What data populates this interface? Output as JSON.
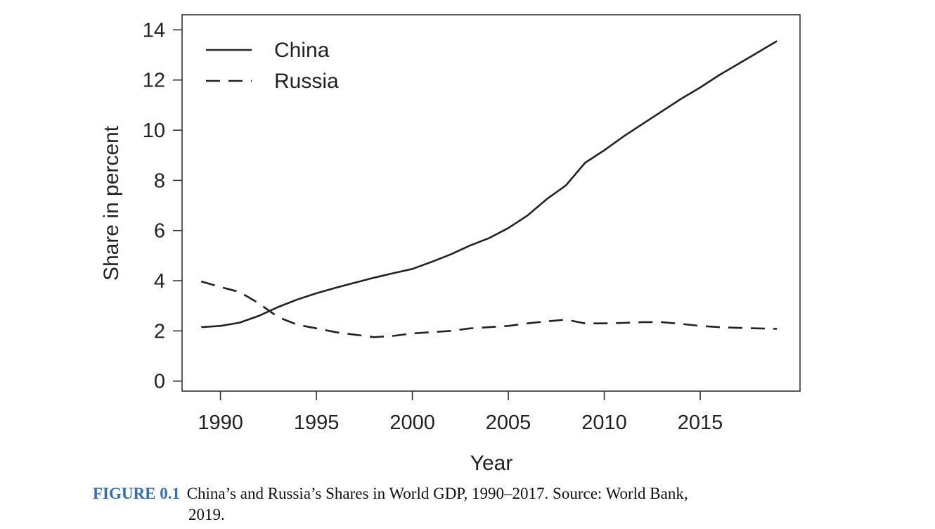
{
  "chart_data": {
    "type": "line",
    "xlabel": "Year",
    "ylabel": "Share in percent",
    "xlim": [
      1988,
      2020.2
    ],
    "ylim": [
      -0.4,
      14.6
    ],
    "xticks": [
      1990,
      1995,
      2000,
      2005,
      2010,
      2015
    ],
    "yticks": [
      0,
      2,
      4,
      6,
      8,
      10,
      12,
      14
    ],
    "legend_position": "top-left",
    "series": [
      {
        "name": "China",
        "style": "solid",
        "x": [
          1989,
          1990,
          1991,
          1992,
          1993,
          1994,
          1995,
          1996,
          1997,
          1998,
          1999,
          2000,
          2001,
          2002,
          2003,
          2004,
          2005,
          2006,
          2007,
          2008,
          2009,
          2010,
          2011,
          2012,
          2013,
          2014,
          2015,
          2016,
          2017,
          2018,
          2019
        ],
        "y": [
          2.15,
          2.2,
          2.33,
          2.6,
          2.95,
          3.25,
          3.5,
          3.72,
          3.92,
          4.12,
          4.3,
          4.47,
          4.75,
          5.05,
          5.4,
          5.7,
          6.1,
          6.6,
          7.25,
          7.8,
          8.7,
          9.2,
          9.75,
          10.25,
          10.75,
          11.25,
          11.7,
          12.2,
          12.65,
          13.1,
          13.55
        ]
      },
      {
        "name": "Russia",
        "style": "dashed",
        "x": [
          1989,
          1990,
          1991,
          1992,
          1993,
          1994,
          1995,
          1996,
          1997,
          1998,
          1999,
          2000,
          2001,
          2002,
          2003,
          2004,
          2005,
          2006,
          2007,
          2008,
          2009,
          2010,
          2011,
          2012,
          2013,
          2014,
          2015,
          2016,
          2017,
          2018,
          2019
        ],
        "y": [
          3.97,
          3.75,
          3.55,
          3.1,
          2.55,
          2.25,
          2.1,
          1.95,
          1.85,
          1.75,
          1.8,
          1.9,
          1.95,
          2.0,
          2.1,
          2.15,
          2.2,
          2.3,
          2.38,
          2.45,
          2.3,
          2.3,
          2.32,
          2.35,
          2.35,
          2.28,
          2.2,
          2.15,
          2.12,
          2.1,
          2.08
        ]
      }
    ]
  },
  "caption": {
    "label": "FIGURE 0.1",
    "text": "China’s and Russia’s Shares in World GDP, 1990–2017. Source: World Bank,",
    "text_line2": "2019."
  },
  "colors": {
    "line": "#222222",
    "caption_label": "#2f6fb5"
  }
}
